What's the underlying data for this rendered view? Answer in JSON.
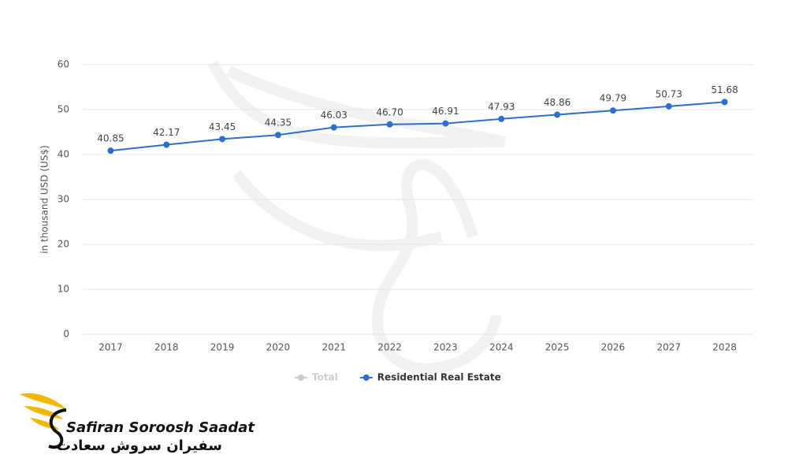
{
  "chart_data": {
    "type": "line",
    "y_label": "in thousand USD (US$)",
    "categories": [
      "2017",
      "2018",
      "2019",
      "2020",
      "2021",
      "2022",
      "2023",
      "2024",
      "2025",
      "2026",
      "2027",
      "2028"
    ],
    "series": [
      {
        "name": "Total",
        "color": "#cccccc",
        "values": [
          null,
          null,
          null,
          null,
          null,
          null,
          null,
          null,
          null,
          null,
          null,
          null
        ]
      },
      {
        "name": "Residential Real Estate",
        "color": "#2f6fcc",
        "values": [
          40.85,
          42.17,
          43.45,
          44.35,
          46.03,
          46.7,
          46.91,
          47.93,
          48.86,
          49.79,
          50.73,
          51.68
        ],
        "value_labels": [
          "40.85",
          "42.17",
          "43.45",
          "44.35",
          "46.03",
          "46.70",
          "46.91",
          "47.93",
          "48.86",
          "49.79",
          "50.73",
          "51.68"
        ]
      }
    ],
    "ylim": [
      0,
      60
    ],
    "yticks": [
      0,
      10,
      20,
      30,
      40,
      50,
      60
    ],
    "grid": true,
    "legend": "bottom"
  },
  "brand": {
    "name": "Safiran Soroosh Saadat",
    "name_fa": "سفیران سروش سعادت"
  }
}
